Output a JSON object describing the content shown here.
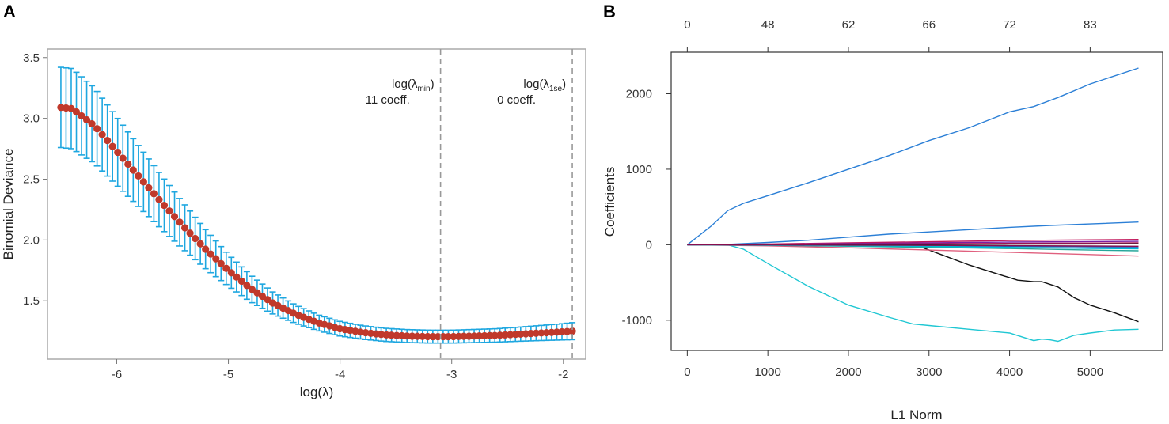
{
  "chart_data": [
    {
      "panel": "A",
      "type": "scatter",
      "title": "",
      "xlabel": "log(λ)",
      "ylabel": "Binomial Deviance",
      "xlim": [
        -6.62,
        -1.8
      ],
      "ylim": [
        1.02,
        3.57
      ],
      "xticks": [
        -6,
        -5,
        -4,
        -3,
        -2
      ],
      "xtick_labels": [
        "-6",
        "-5",
        "-4",
        "-3",
        "-2"
      ],
      "yticks": [
        1.5,
        2.0,
        2.5,
        3.0,
        3.5
      ],
      "ytick_labels": [
        "1.5",
        "2.0",
        "2.5",
        "3.0",
        "3.5"
      ],
      "point_color": "#c0392b",
      "errorbar_color": "#1ea7e0",
      "cv_curve": {
        "x_range": [
          -6.5,
          -1.92
        ],
        "n_points": 100,
        "knots_x": [
          -6.5,
          -6.4,
          -6.2,
          -6.0,
          -5.8,
          -5.6,
          -5.4,
          -5.2,
          -5.0,
          -4.8,
          -4.6,
          -4.4,
          -4.2,
          -4.0,
          -3.8,
          -3.6,
          -3.4,
          -3.2,
          -3.1,
          -3.0,
          -2.8,
          -2.6,
          -2.4,
          -2.2,
          -2.0,
          -1.92
        ],
        "knots_mean": [
          3.09,
          3.08,
          2.94,
          2.73,
          2.52,
          2.31,
          2.11,
          1.92,
          1.75,
          1.6,
          1.48,
          1.39,
          1.32,
          1.27,
          1.24,
          1.22,
          1.21,
          1.205,
          1.205,
          1.205,
          1.21,
          1.215,
          1.225,
          1.235,
          1.245,
          1.25
        ],
        "knots_se": [
          0.33,
          0.33,
          0.31,
          0.28,
          0.25,
          0.22,
          0.19,
          0.16,
          0.13,
          0.11,
          0.09,
          0.075,
          0.065,
          0.06,
          0.056,
          0.054,
          0.053,
          0.053,
          0.053,
          0.053,
          0.054,
          0.055,
          0.058,
          0.062,
          0.067,
          0.07
        ]
      },
      "vlines": [
        {
          "x": -3.1,
          "label_main": "log(λ",
          "label_sub": "min",
          "label_close": ")",
          "label_coeff": "11 coeff."
        },
        {
          "x": -1.92,
          "label_main": "log(λ",
          "label_sub": "1se",
          "label_close": ")",
          "label_coeff": "0 coeff."
        }
      ]
    },
    {
      "panel": "B",
      "type": "line",
      "title": "",
      "xlabel": "L1 Norm",
      "ylabel": "Coefficients",
      "xlim": [
        -200,
        5900
      ],
      "ylim": [
        -1400,
        2550
      ],
      "xticks": [
        0,
        1000,
        2000,
        3000,
        4000,
        5000
      ],
      "xtick_labels": [
        "0",
        "1000",
        "2000",
        "3000",
        "4000",
        "5000"
      ],
      "yticks": [
        -1000,
        0,
        1000,
        2000
      ],
      "ytick_labels": [
        "-1000",
        "0",
        "1000",
        "2000"
      ],
      "top_axis": {
        "positions": [
          0,
          1000,
          2000,
          3000,
          4000,
          5000
        ],
        "labels": [
          "0",
          "48",
          "62",
          "66",
          "72",
          "83"
        ]
      },
      "series": [
        {
          "name": "path1",
          "color": "#2b7fd6",
          "x": [
            0,
            300,
            500,
            700,
            1000,
            1500,
            2000,
            2500,
            3000,
            3500,
            4000,
            4300,
            4600,
            5000,
            5600
          ],
          "y": [
            0,
            250,
            450,
            550,
            650,
            820,
            1000,
            1180,
            1380,
            1550,
            1760,
            1830,
            1950,
            2130,
            2340
          ]
        },
        {
          "name": "path2",
          "color": "#2b7fd6",
          "x": [
            0,
            500,
            1000,
            1500,
            2000,
            2500,
            3000,
            3500,
            4000,
            4500,
            5000,
            5600
          ],
          "y": [
            0,
            5,
            30,
            60,
            100,
            140,
            170,
            200,
            230,
            255,
            275,
            300
          ]
        },
        {
          "name": "path3",
          "color": "#20c7d3",
          "x": [
            0,
            500,
            700,
            1000,
            1500,
            2000,
            2500,
            2800,
            3000,
            3500,
            4000,
            4300,
            4400,
            4500,
            4600,
            4800,
            5000,
            5300,
            5600
          ],
          "y": [
            0,
            0,
            -60,
            -250,
            -550,
            -800,
            -960,
            -1050,
            -1070,
            -1120,
            -1170,
            -1270,
            -1250,
            -1260,
            -1280,
            -1200,
            -1170,
            -1130,
            -1120
          ]
        },
        {
          "name": "path4",
          "color": "#111111",
          "x": [
            0,
            2700,
            2900,
            3200,
            3500,
            3800,
            4100,
            4300,
            4400,
            4600,
            4800,
            5000,
            5300,
            5600
          ],
          "y": [
            0,
            0,
            -30,
            -150,
            -270,
            -370,
            -470,
            -490,
            -490,
            -560,
            -700,
            -800,
            -900,
            -1020
          ]
        },
        {
          "name": "path5",
          "color": "#c2185b",
          "x": [
            0,
            1000,
            2000,
            3000,
            4000,
            5000,
            5600
          ],
          "y": [
            0,
            10,
            25,
            40,
            55,
            65,
            70
          ]
        },
        {
          "name": "path6",
          "color": "#e0607e",
          "x": [
            0,
            1000,
            2000,
            3000,
            4000,
            5000,
            5600
          ],
          "y": [
            0,
            -15,
            -40,
            -70,
            -100,
            -130,
            -150
          ]
        },
        {
          "name": "path7",
          "color": "#7b1fa2",
          "x": [
            0,
            1000,
            2000,
            3000,
            4000,
            5000,
            5600
          ],
          "y": [
            0,
            5,
            15,
            25,
            35,
            42,
            45
          ]
        },
        {
          "name": "path8",
          "color": "#26a69a",
          "x": [
            0,
            1000,
            2000,
            3000,
            4000,
            5000,
            5600
          ],
          "y": [
            0,
            -8,
            -20,
            -35,
            -50,
            -70,
            -80
          ]
        },
        {
          "name": "path9",
          "color": "#ad1457",
          "x": [
            0,
            1000,
            2000,
            3000,
            4000,
            5000,
            5600
          ],
          "y": [
            0,
            3,
            8,
            12,
            18,
            22,
            25
          ]
        },
        {
          "name": "path10",
          "color": "#1565c0",
          "x": [
            0,
            1000,
            2000,
            3000,
            4000,
            5000,
            5600
          ],
          "y": [
            0,
            -3,
            -8,
            -12,
            -20,
            -28,
            -30
          ]
        },
        {
          "name": "path11",
          "color": "#00bcd4",
          "x": [
            0,
            1000,
            2000,
            3000,
            4000,
            5000,
            5600
          ],
          "y": [
            0,
            -5,
            -12,
            -22,
            -35,
            -48,
            -55
          ]
        },
        {
          "name": "path12",
          "color": "#222222",
          "x": [
            0,
            1000,
            2000,
            3000,
            4000,
            5000,
            5600
          ],
          "y": [
            0,
            1,
            3,
            5,
            8,
            10,
            12
          ]
        },
        {
          "name": "path13",
          "color": "#880e4f",
          "x": [
            0,
            1000,
            2000,
            3000,
            4000,
            5000,
            5600
          ],
          "y": [
            0,
            -2,
            -5,
            -9,
            -13,
            -17,
            -20
          ]
        }
      ]
    }
  ]
}
